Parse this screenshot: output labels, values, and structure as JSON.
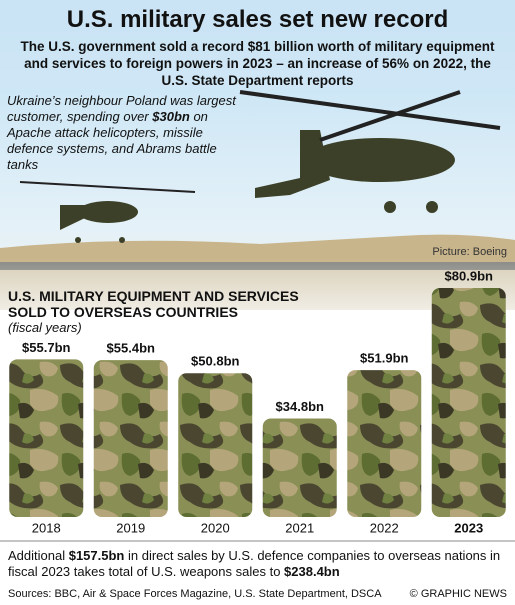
{
  "chart_data": {
    "type": "bar",
    "title": "U.S. military sales set new record",
    "subtitle": "The U.S. government sold a record $81 billion worth of military equipment and services to foreign powers in 2023 – an increase of 56% on 2022, the U.S. State Department reports",
    "annotation_parts": [
      "Ukraine’s neighbour Poland was largest customer, spending over ",
      "$30bn",
      " on Apache attack helicopters, missile defence systems, and Abrams battle tanks"
    ],
    "photo_credit": "Picture: Boeing",
    "chart_title": "U.S. MILITARY EQUIPMENT AND SERVICES SOLD TO OVERSEAS COUNTRIES",
    "chart_subtitle": "(fiscal years)",
    "categories": [
      "2018",
      "2019",
      "2020",
      "2021",
      "2022",
      "2023"
    ],
    "values": [
      55.7,
      55.4,
      50.8,
      34.8,
      51.9,
      80.9
    ],
    "value_labels": [
      "$55.7bn",
      "$55.4bn",
      "$50.8bn",
      "$34.8bn",
      "$51.9bn",
      "$80.9bn"
    ],
    "footnote_parts": [
      "Additional ",
      "$157.5bn",
      " in direct sales by U.S. defence companies to overseas nations in fiscal 2023 takes total of U.S. weapons sales to ",
      "$238.4bn"
    ],
    "sources": "Sources: BBC, Air & Space Forces Magazine, U.S. State Department, DSCA",
    "copyright": "© GRAPHIC NEWS"
  }
}
